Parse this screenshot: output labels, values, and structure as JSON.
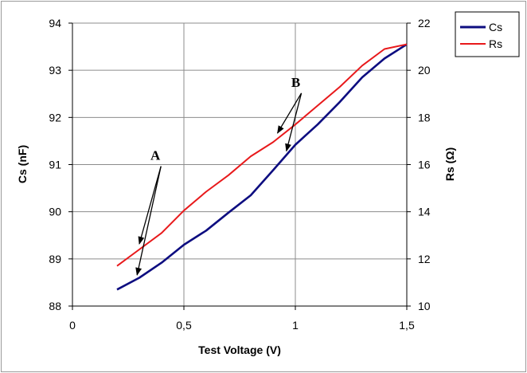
{
  "chart_data": {
    "type": "line",
    "xlabel": "Test Voltage (V)",
    "ylabel_left": "Cs (nF)",
    "ylabel_right": "Rs (Ω)",
    "xlim": [
      0,
      1.5
    ],
    "ylim_left": [
      88,
      94
    ],
    "ylim_right": [
      10,
      22
    ],
    "x_ticks": [
      "0",
      "0,5",
      "1",
      "1,5"
    ],
    "y_left_ticks": [
      "88",
      "89",
      "90",
      "91",
      "92",
      "93",
      "94"
    ],
    "y_right_ticks": [
      "10",
      "12",
      "14",
      "16",
      "18",
      "20",
      "22"
    ],
    "grid": true,
    "legend_position": "top-right-outside",
    "series": [
      {
        "name": "Cs",
        "axis": "left",
        "color": "#0d0d80",
        "x": [
          0.2,
          0.3,
          0.4,
          0.5,
          0.6,
          0.7,
          0.8,
          0.9,
          1.0,
          1.1,
          1.2,
          1.3,
          1.4,
          1.5
        ],
        "y": [
          88.35,
          88.6,
          88.92,
          89.3,
          89.6,
          89.98,
          90.35,
          90.88,
          91.42,
          91.85,
          92.33,
          92.85,
          93.25,
          93.55
        ]
      },
      {
        "name": "Rs",
        "axis": "right",
        "color": "#e8191b",
        "x": [
          0.2,
          0.3,
          0.4,
          0.5,
          0.6,
          0.7,
          0.8,
          0.9,
          1.0,
          1.1,
          1.2,
          1.3,
          1.4,
          1.5
        ],
        "y": [
          11.7,
          12.4,
          13.1,
          14.05,
          14.85,
          15.55,
          16.35,
          16.95,
          17.7,
          18.5,
          19.3,
          20.2,
          20.9,
          21.1
        ]
      }
    ],
    "annotations": [
      {
        "label": "A",
        "x": 0.39,
        "y_left": 91.1
      },
      {
        "label": "B",
        "x": 1.02,
        "y_left": 92.65
      }
    ]
  }
}
